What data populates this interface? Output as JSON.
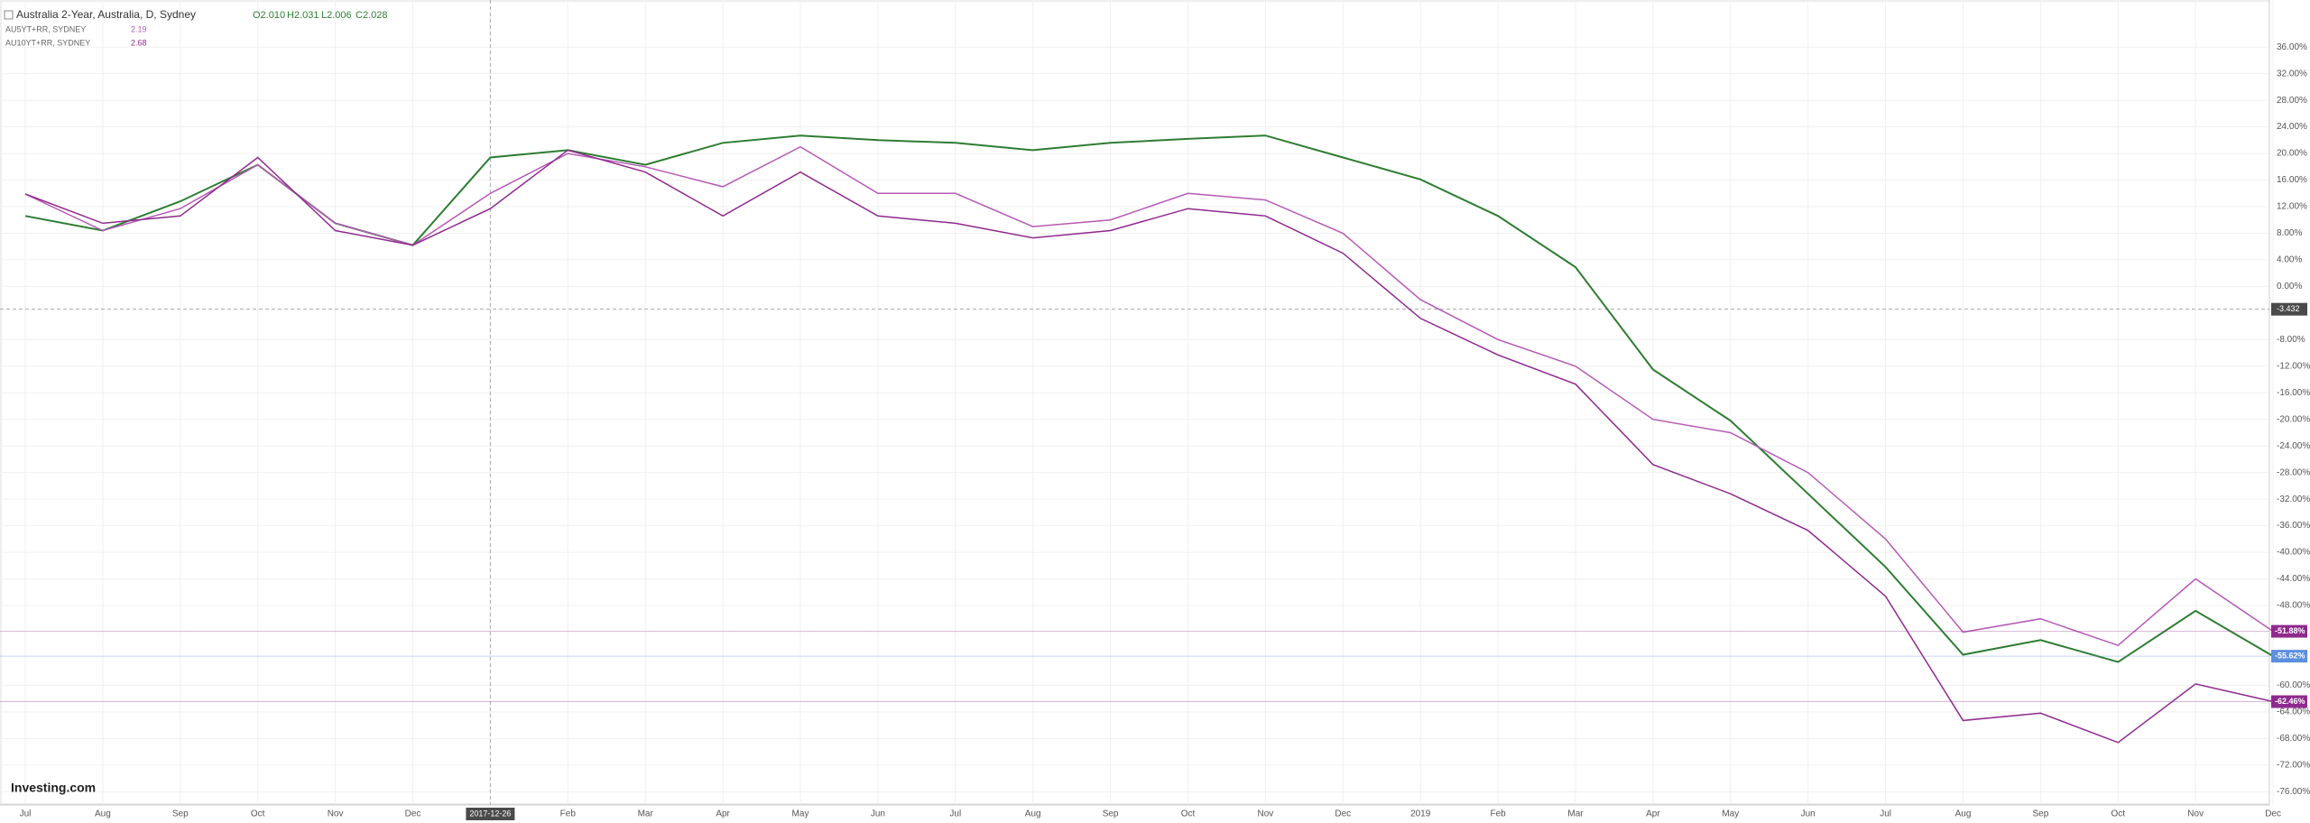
{
  "chart_data": {
    "type": "line",
    "title": "Australia 2-Year, Australia, D, Sydney",
    "ohlc_text": [
      "O2.010",
      "H2.031",
      "L2.006",
      "C2.028"
    ],
    "legend_values": [
      "2.19",
      "2.68"
    ],
    "logo": "Investing.com",
    "categories": [
      "Jul",
      "Aug",
      "Sep",
      "Oct",
      "Nov",
      "Dec",
      null,
      "Feb",
      "Mar",
      "Apr",
      "May",
      "Jun",
      "Jul",
      "Aug",
      "Sep",
      "Oct",
      "Nov",
      "Dec",
      "2019",
      "Feb",
      "Mar",
      "Apr",
      "May",
      "Jun",
      "Jul",
      "Aug",
      "Sep",
      "Oct",
      "Nov",
      "Dec"
    ],
    "series": [
      {
        "name": "Australia 2-Year",
        "color": "#2e7d32",
        "values": [
          10.6,
          8.4,
          12.8,
          18.3,
          9.5,
          6.2,
          19.4,
          20.5,
          18.3,
          21.6,
          22.7,
          22,
          21.6,
          20.5,
          21.6,
          22.2,
          22.7,
          19.4,
          16.1,
          10.6,
          2.9,
          -12.5,
          -20.2,
          -31.2,
          -42.2,
          -55.4,
          -53.2,
          -56.5,
          -48.8,
          -55.62
        ]
      },
      {
        "name": "AU5YT+RR, SYDNEY",
        "color": "#b55ab5",
        "values": [
          13.9,
          8.4,
          11.7,
          18.3,
          9.5,
          6.2,
          14,
          20,
          18,
          15,
          21,
          14,
          14,
          9,
          10,
          14,
          13,
          8,
          -2,
          -8,
          -12,
          -20,
          -22,
          -28,
          -38,
          -52,
          -50,
          -54,
          -44,
          -51.88
        ]
      },
      {
        "name": "AU10YT+RR, SYDNEY",
        "color": "#8e2a8e",
        "values": [
          13.9,
          9.5,
          10.6,
          19.4,
          8.4,
          6.2,
          11.7,
          20.5,
          17.2,
          10.6,
          17.2,
          10.6,
          9.5,
          7.3,
          8.4,
          11.7,
          10.6,
          5,
          -4.8,
          -10.3,
          -14.7,
          -26.8,
          -31.2,
          -36.7,
          -46.6,
          -65.3,
          -64.2,
          -68.6,
          -59.8,
          -62.46
        ]
      }
    ],
    "last_labels": [
      {
        "value": -51.88,
        "label": "-51.88%",
        "color": "#8e2a8e"
      },
      {
        "value": -55.62,
        "label": "-55.62%",
        "color": "#5b8fe0"
      },
      {
        "value": -62.46,
        "label": "-62.46%",
        "color": "#8e2a8e"
      }
    ],
    "crosshair": {
      "x_label": "2017-12-26",
      "y": {
        "value": -3.432,
        "label": "-3.432"
      }
    },
    "ylim": [
      -78,
      42
    ],
    "yticks": [
      {
        "value": 36,
        "label": "36.00%"
      },
      {
        "value": 32,
        "label": "32.00%"
      },
      {
        "value": 28,
        "label": "28.00%"
      },
      {
        "value": 24,
        "label": "24.00%"
      },
      {
        "value": 20,
        "label": "20.00%"
      },
      {
        "value": 16,
        "label": "16.00%"
      },
      {
        "value": 12,
        "label": "12.00%"
      },
      {
        "value": 8,
        "label": "8.00%"
      },
      {
        "value": 4,
        "label": "4.00%"
      },
      {
        "value": 0,
        "label": "0.00%"
      },
      {
        "value": -8,
        "label": "-8.00%"
      },
      {
        "value": -12,
        "label": "-12.00%"
      },
      {
        "value": -16,
        "label": "-16.00%"
      },
      {
        "value": -20,
        "label": "-20.00%"
      },
      {
        "value": -24,
        "label": "-24.00%"
      },
      {
        "value": -28,
        "label": "-28.00%"
      },
      {
        "value": -32,
        "label": "-32.00%"
      },
      {
        "value": -36,
        "label": "-36.00%"
      },
      {
        "value": -40,
        "label": "-40.00%"
      },
      {
        "value": -44,
        "label": "-44.00%"
      },
      {
        "value": -48,
        "label": "-48.00%"
      },
      {
        "value": -60,
        "label": "-60.00%"
      },
      {
        "value": -64,
        "label": "-64.00%"
      },
      {
        "value": -68,
        "label": "-68.00%"
      },
      {
        "value": -72,
        "label": "-72.00%"
      },
      {
        "value": -76,
        "label": "-76.00%"
      }
    ],
    "grid": true
  }
}
